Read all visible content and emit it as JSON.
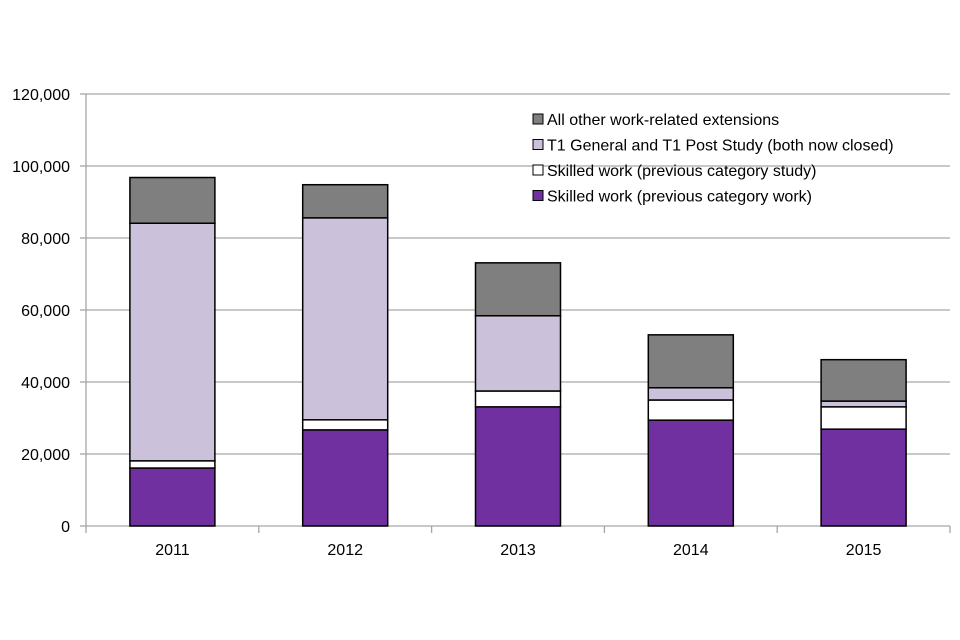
{
  "chart_data": {
    "type": "bar",
    "stacked": true,
    "title": "",
    "xlabel": "",
    "ylabel": "",
    "ylim": [
      0,
      120000
    ],
    "yticks": [
      0,
      20000,
      40000,
      60000,
      80000,
      100000,
      120000
    ],
    "ytick_labels": [
      "0",
      "20,000",
      "40,000",
      "60,000",
      "80,000",
      "100,000",
      "120,000"
    ],
    "grid": true,
    "legend_position": "top-right",
    "categories": [
      "2011",
      "2012",
      "2013",
      "2014",
      "2015"
    ],
    "series": [
      {
        "name": "Skilled work (previous category work)",
        "color": "#7030a0",
        "values": [
          16100,
          26700,
          33100,
          29400,
          26900
        ]
      },
      {
        "name": "Skilled work (previous category study)",
        "color": "#ffffff",
        "values": [
          2000,
          2800,
          4400,
          5600,
          6200
        ]
      },
      {
        "name": "T1 General and T1 Post Study (both now closed)",
        "color": "#ccc1da",
        "values": [
          66000,
          56100,
          20900,
          3400,
          1600
        ]
      },
      {
        "name": "All other work-related extensions",
        "color": "#7f7f7f",
        "values": [
          12700,
          9200,
          14700,
          14700,
          11500
        ]
      }
    ],
    "legend_order": [
      "All other work-related extensions",
      "T1 General and T1 Post Study (both now closed)",
      "Skilled work (previous category study)",
      "Skilled work (previous category work)"
    ]
  }
}
